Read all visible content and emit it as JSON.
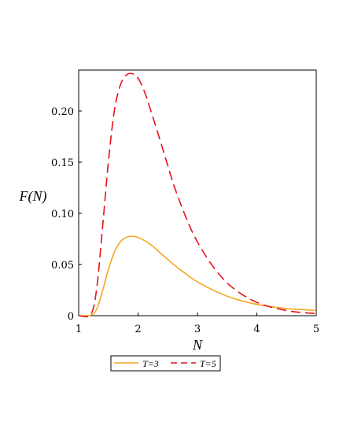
{
  "chart_data": {
    "type": "line",
    "xlabel": "N",
    "ylabel": "F(N)",
    "xlim": [
      1,
      5
    ],
    "ylim": [
      0,
      0.24
    ],
    "x_ticks": [
      1,
      2,
      3,
      4,
      5
    ],
    "x_tick_labels": [
      "1",
      "2",
      "3",
      "4",
      "5"
    ],
    "y_ticks": [
      0,
      0.05,
      0.1,
      0.15,
      0.2
    ],
    "y_tick_labels": [
      "0",
      "0.05",
      "0.10",
      "0.15",
      "0.20"
    ],
    "grid": false,
    "legend_position": "bottom-center",
    "series": [
      {
        "name": "T=3",
        "color": "#f5a623",
        "style": "solid",
        "x": [
          1.0,
          1.2,
          1.3,
          1.4,
          1.5,
          1.6,
          1.7,
          1.8,
          1.9,
          2.0,
          2.2,
          2.4,
          2.6,
          2.8,
          3.0,
          3.3,
          3.6,
          4.0,
          4.5,
          5.0
        ],
        "y": [
          0.0,
          0.0005,
          0.006,
          0.024,
          0.045,
          0.062,
          0.072,
          0.0765,
          0.0775,
          0.0765,
          0.07,
          0.06,
          0.05,
          0.041,
          0.033,
          0.024,
          0.017,
          0.011,
          0.007,
          0.005
        ]
      },
      {
        "name": "T=5",
        "color": "#e8101a",
        "style": "dashed",
        "x": [
          1.0,
          1.2,
          1.3,
          1.4,
          1.5,
          1.6,
          1.7,
          1.8,
          1.9,
          2.0,
          2.1,
          2.2,
          2.4,
          2.6,
          2.8,
          3.0,
          3.3,
          3.6,
          4.0,
          4.5,
          5.0
        ],
        "y": [
          0.0,
          0.001,
          0.025,
          0.085,
          0.15,
          0.2,
          0.225,
          0.235,
          0.2365,
          0.232,
          0.22,
          0.203,
          0.166,
          0.128,
          0.097,
          0.072,
          0.045,
          0.027,
          0.013,
          0.005,
          0.002
        ]
      }
    ]
  }
}
